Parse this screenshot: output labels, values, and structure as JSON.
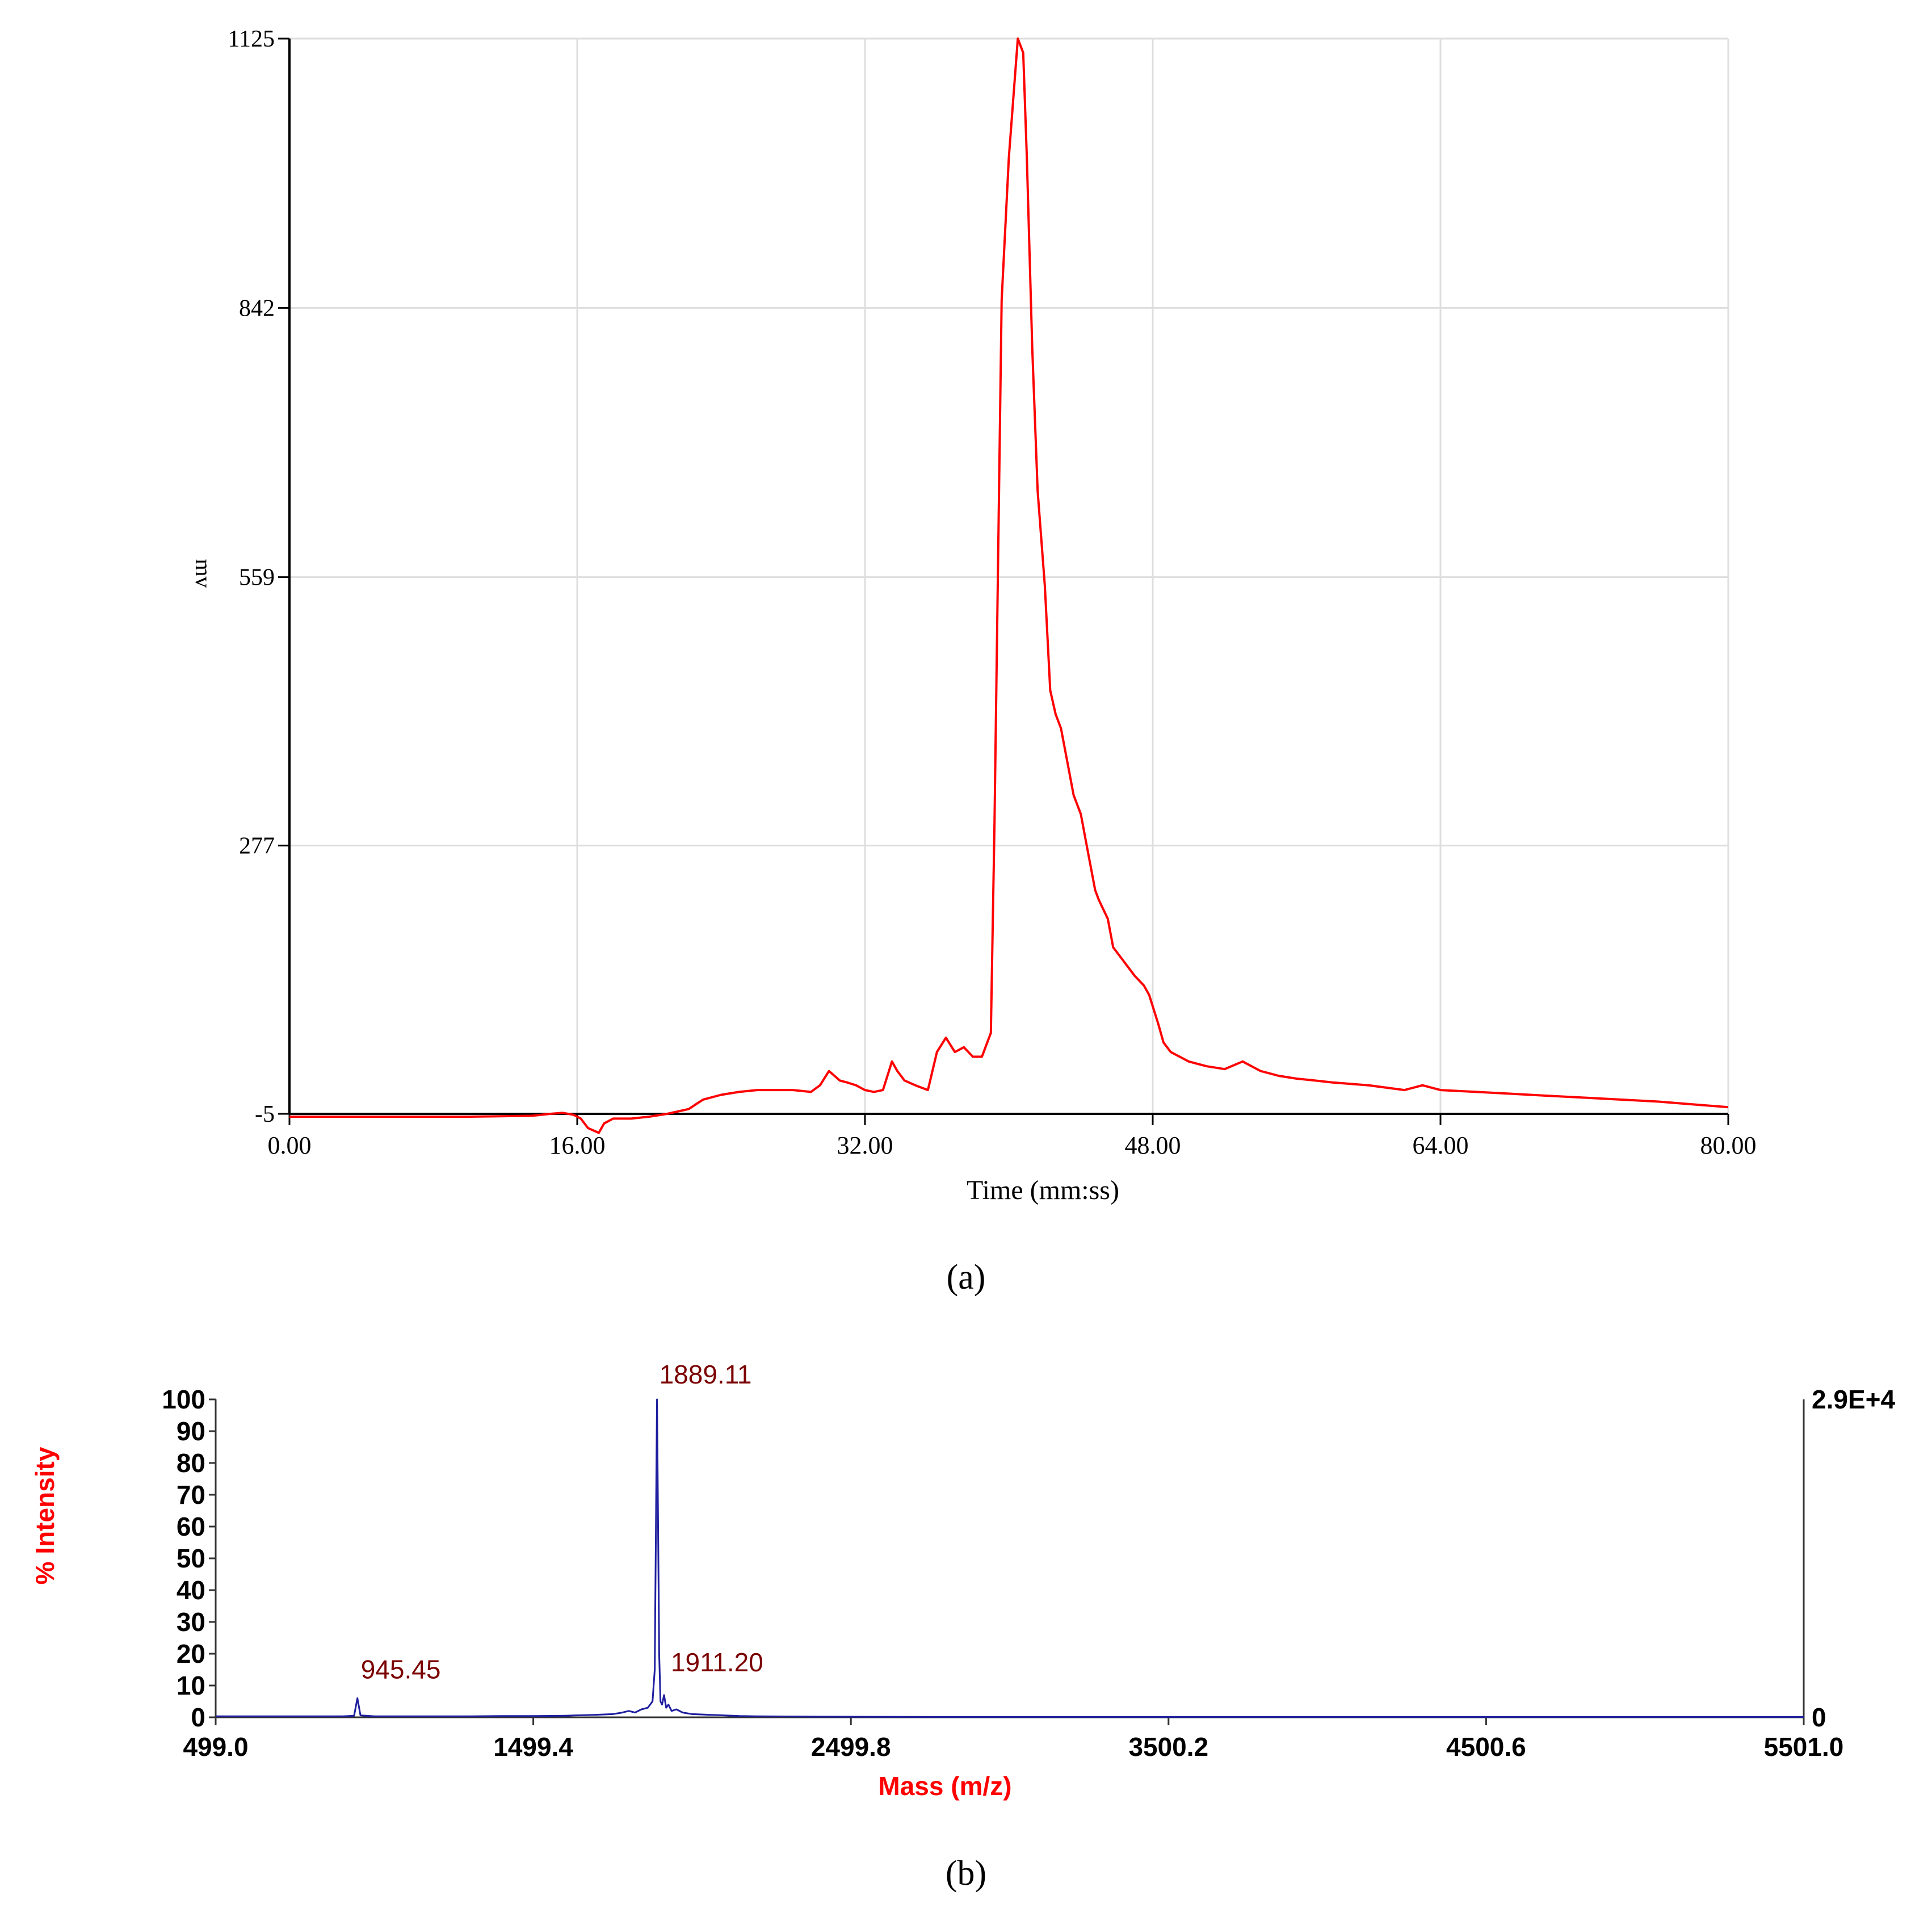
{
  "panel_a": {
    "panel_label": "(a)",
    "chart_data": {
      "type": "line",
      "title": "",
      "xlabel": "Time (mm:ss)",
      "ylabel": "mv",
      "xlim": [
        0,
        80
      ],
      "ylim": [
        -5,
        1125
      ],
      "x_tick_labels": [
        "0.00",
        "16.00",
        "32.00",
        "48.00",
        "64.00",
        "80.00"
      ],
      "x_ticks": [
        0,
        16,
        32,
        48,
        64,
        80
      ],
      "y_tick_labels": [
        "1125",
        "842",
        "559",
        "277",
        "-5"
      ],
      "y_ticks": [
        1125,
        842,
        559,
        277,
        -5
      ],
      "grid": true,
      "line_color": "#ff0000",
      "series": [
        {
          "x": [
            0,
            5,
            10,
            13.5,
            14.5,
            15.2,
            15.8,
            16.2,
            16.6,
            17.2,
            17.5,
            18,
            19,
            20,
            21,
            22.2,
            22.6,
            23,
            24,
            25,
            26,
            27,
            28,
            29,
            29.5,
            30,
            30.6,
            31,
            31.5,
            32,
            32.5,
            33,
            33.5,
            33.8,
            34.2,
            34.8,
            35.5,
            36,
            36.5,
            37,
            37.5,
            38,
            38.5,
            39,
            39.2,
            39.6,
            40,
            40.5,
            40.8,
            41,
            41.3,
            41.6,
            42,
            42.3,
            42.6,
            42.9,
            43.3,
            43.6,
            44,
            44.4,
            44.8,
            45,
            45.5,
            45.8,
            46.2,
            46.6,
            47,
            47.5,
            47.8,
            48.3,
            48.6,
            49,
            49.5,
            50,
            51,
            52,
            53,
            54,
            55,
            56,
            57,
            58,
            60,
            62,
            63,
            64,
            66,
            68,
            70,
            72,
            74,
            76,
            78,
            80
          ],
          "y": [
            -8,
            -8,
            -8,
            -7,
            -5,
            -4,
            -6,
            -10,
            -20,
            -25,
            -15,
            -10,
            -10,
            -8,
            -5,
            0,
            5,
            10,
            15,
            18,
            20,
            20,
            20,
            18,
            25,
            40,
            30,
            28,
            25,
            20,
            18,
            20,
            50,
            40,
            30,
            25,
            20,
            60,
            75,
            60,
            65,
            55,
            55,
            80,
            300,
            850,
            1000,
            1125,
            1110,
            1000,
            800,
            650,
            550,
            440,
            415,
            400,
            360,
            330,
            310,
            270,
            230,
            220,
            200,
            170,
            160,
            150,
            140,
            130,
            120,
            90,
            70,
            60,
            55,
            50,
            45,
            42,
            50,
            40,
            35,
            32,
            30,
            28,
            25,
            20,
            25,
            20,
            18,
            16,
            14,
            12,
            10,
            8,
            5,
            2
          ]
        }
      ]
    }
  },
  "panel_b": {
    "panel_label": "(b)",
    "chart_data": {
      "type": "line",
      "title": "",
      "xlabel": "Mass (m/z)",
      "ylabel": "% Intensity",
      "xlim": [
        499.0,
        5501.0
      ],
      "ylim": [
        0,
        100
      ],
      "x_tick_labels": [
        "499.0",
        "1499.4",
        "2499.8",
        "3500.2",
        "4500.6",
        "5501.0"
      ],
      "x_ticks": [
        499.0,
        1499.4,
        2499.8,
        3500.2,
        4500.6,
        5501.0
      ],
      "y_tick_labels": [
        "100",
        "90",
        "80",
        "70",
        "60",
        "50",
        "40",
        "30",
        "20",
        "10",
        "0"
      ],
      "y_ticks": [
        100,
        90,
        80,
        70,
        60,
        50,
        40,
        30,
        20,
        10,
        0
      ],
      "right_axis_labels": [
        "2.9E+4",
        "0"
      ],
      "grid": false,
      "line_color": "#1f1fa0",
      "label_color": "#7b0000",
      "axis_label_color": "#ff0000",
      "peak_labels": [
        {
          "text": "1889.11",
          "x": 1889.11,
          "y": 100
        },
        {
          "text": "945.45",
          "x": 945.45,
          "y": 6
        },
        {
          "text": "1911.20",
          "x": 1911.2,
          "y": 7
        }
      ],
      "series": [
        {
          "x": [
            499,
            600,
            700,
            800,
            900,
            935,
            945.45,
            955,
            1000,
            1100,
            1200,
            1300,
            1400,
            1500,
            1600,
            1700,
            1750,
            1780,
            1800,
            1820,
            1840,
            1860,
            1875,
            1882,
            1889.11,
            1896,
            1900,
            1905,
            1911.2,
            1918,
            1925,
            1935,
            1950,
            1970,
            2000,
            2050,
            2100,
            2150,
            2200,
            2400,
            2800,
            3200,
            3600,
            4000,
            4500,
            5000,
            5501
          ],
          "y": [
            0.3,
            0.3,
            0.3,
            0.3,
            0.3,
            0.5,
            6,
            0.6,
            0.3,
            0.3,
            0.3,
            0.3,
            0.4,
            0.4,
            0.5,
            0.8,
            1.0,
            1.5,
            2,
            1.5,
            2.5,
            3,
            5,
            15,
            100,
            20,
            5,
            4,
            7,
            3,
            4,
            2,
            2.5,
            1.5,
            1,
            0.8,
            0.6,
            0.4,
            0.3,
            0.2,
            0.1,
            0.1,
            0.1,
            0.1,
            0.1,
            0.1,
            0.1
          ]
        }
      ]
    }
  }
}
